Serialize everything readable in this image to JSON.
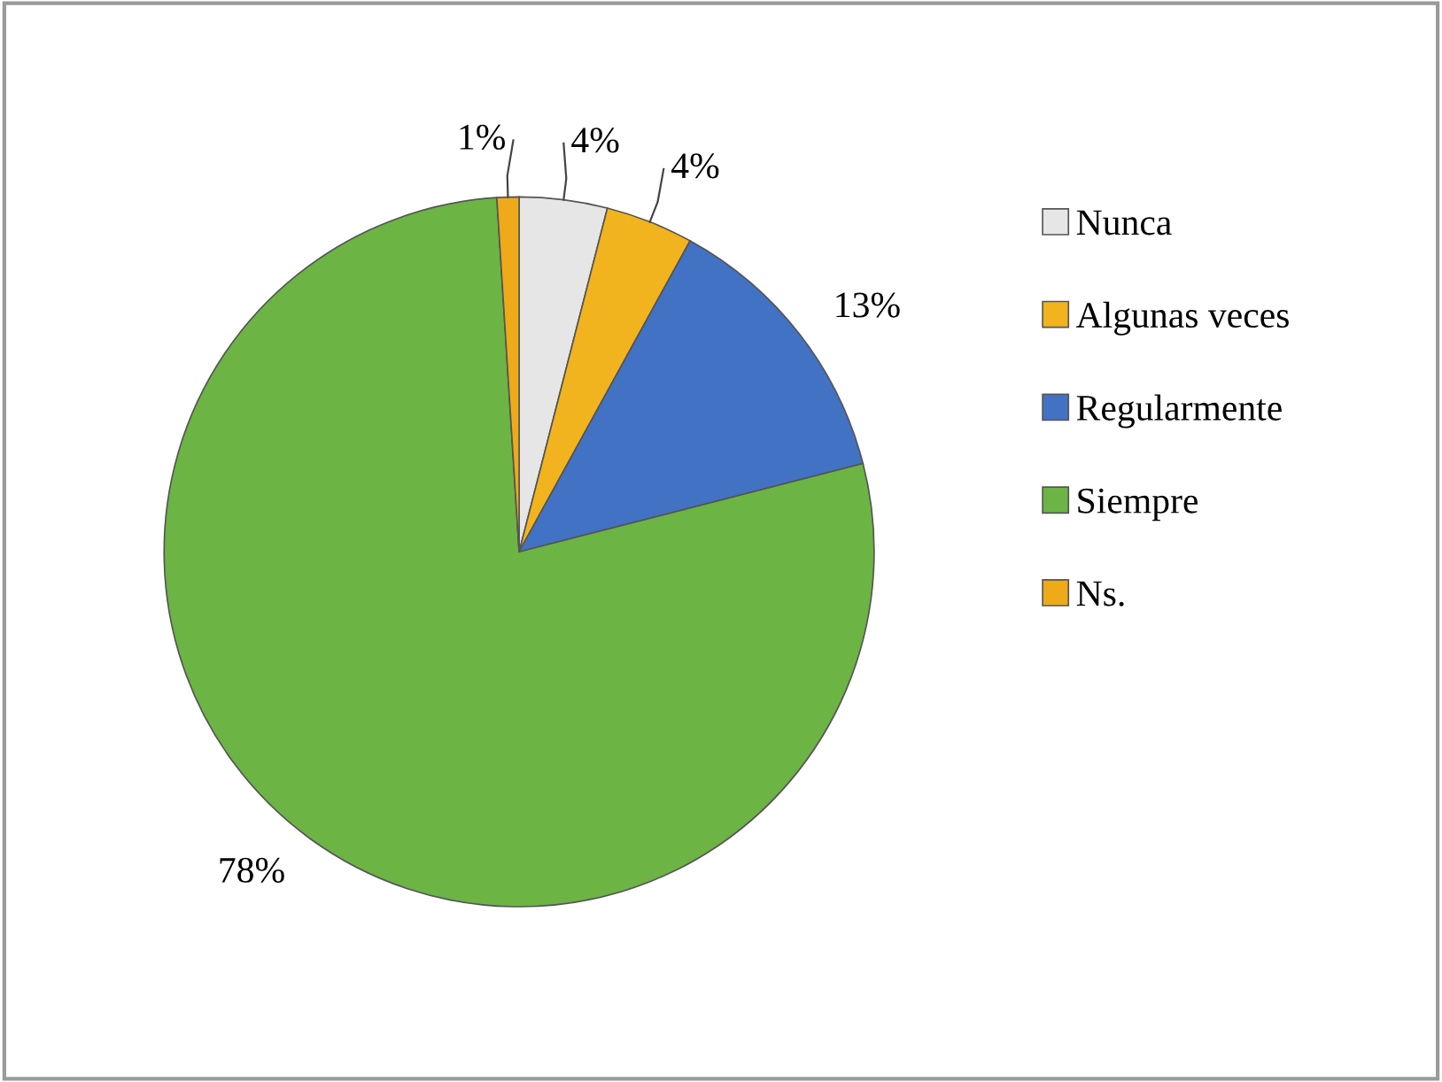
{
  "chart_data": {
    "type": "pie",
    "categories": [
      "Nunca",
      "Algunas veces",
      "Regularmente",
      "Siempre",
      "Ns."
    ],
    "values": [
      4,
      4,
      13,
      78,
      1
    ],
    "colors": [
      "#e6e6e6",
      "#f2b41e",
      "#4272c4",
      "#6cb444",
      "#eeaa18"
    ],
    "value_labels": [
      "4%",
      "4%",
      "13%",
      "78%",
      "1%"
    ],
    "legend": "right"
  }
}
